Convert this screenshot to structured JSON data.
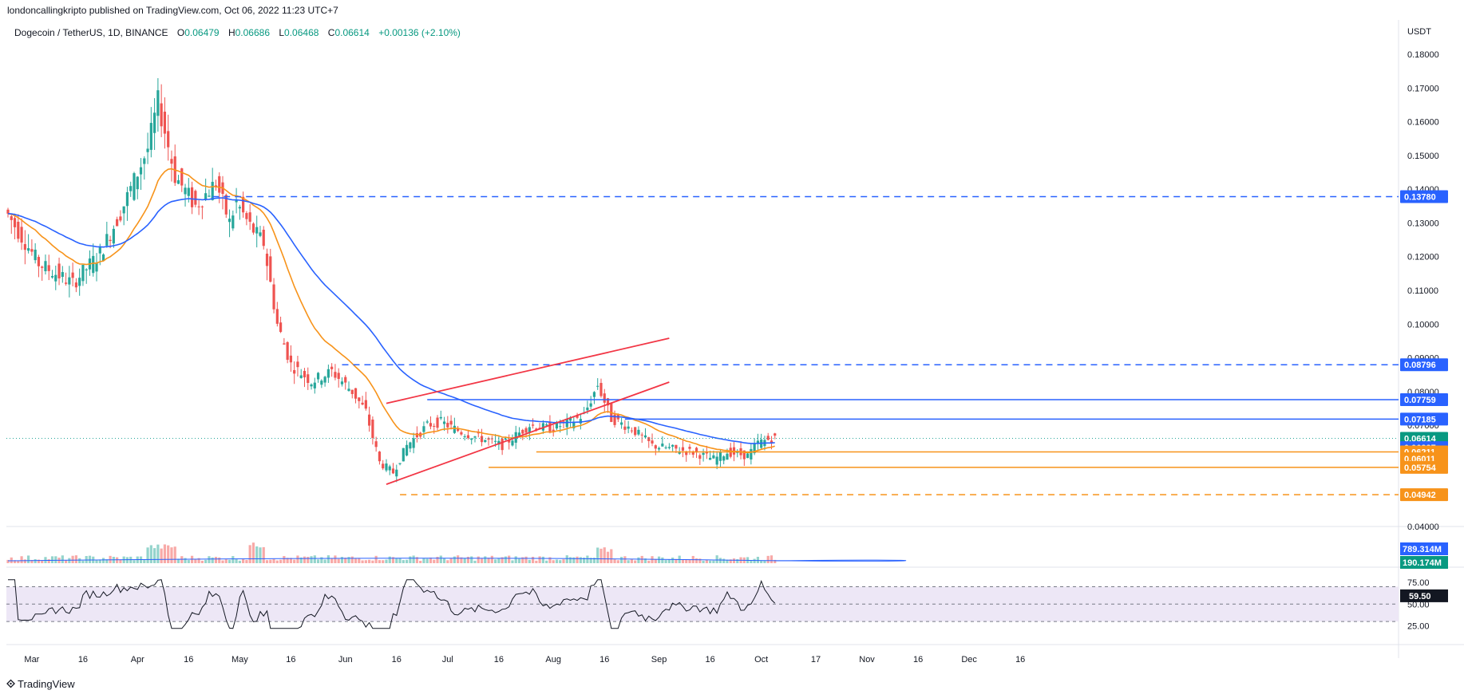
{
  "header": {
    "published": "londoncallingkripto published on TradingView.com, Oct 06, 2022 11:23 UTC+7"
  },
  "legend": {
    "symbol": "Dogecoin / TetherUS, 1D, BINANCE",
    "open_label": "O",
    "open": "0.06479",
    "high_label": "H",
    "high": "0.06686",
    "low_label": "L",
    "low": "0.06468",
    "close_label": "C",
    "close": "0.06614",
    "change": "+0.00136 (+2.10%)"
  },
  "currency": "USDT",
  "footer": {
    "brand": "TradingView",
    "logo_icon": "tradingview-logo-icon"
  },
  "colors": {
    "up": "#26a69a",
    "down": "#ef5350",
    "ema_fast": "#f7931a",
    "ema_slow": "#2962ff",
    "trendline": "#f23645",
    "resistance": "#2962ff",
    "support": "#f7931a",
    "rsi": "#131722",
    "rsi_band": "#ede7f6"
  },
  "chart_data": {
    "type": "candlestick",
    "symbol": "DOGEUSDT",
    "price_axis": {
      "ticks": [
        "0.18000",
        "0.17000",
        "0.16000",
        "0.15000",
        "0.14000",
        "0.13000",
        "0.12000",
        "0.11000",
        "0.10000",
        "0.09000",
        "0.08000",
        "0.07000",
        "0.06000",
        "0.05000",
        "0.04000"
      ],
      "ylim": [
        0.04,
        0.18
      ]
    },
    "time_axis": {
      "ticks": [
        "Mar",
        "16",
        "Apr",
        "16",
        "May",
        "16",
        "Jun",
        "16",
        "Jul",
        "16",
        "Aug",
        "16",
        "Sep",
        "16",
        "Oct",
        "17",
        "Nov",
        "16",
        "Dec",
        "16"
      ]
    },
    "price_labels": [
      {
        "value": "0.13780",
        "style": "blue"
      },
      {
        "value": "0.08796",
        "style": "blue"
      },
      {
        "value": "0.07759",
        "style": "blue"
      },
      {
        "value": "0.07185",
        "style": "blue"
      },
      {
        "value": "0.06614",
        "style": "green"
      },
      {
        "value": "0.06337",
        "style": "blue"
      },
      {
        "value": "0.06211",
        "style": "orange"
      },
      {
        "value": "0.06011",
        "style": "orange"
      },
      {
        "value": "0.05754",
        "style": "orange"
      },
      {
        "value": "0.04942",
        "style": "orange"
      }
    ],
    "horizontal_levels": [
      {
        "value": 0.1378,
        "color": "blue",
        "dashed": true,
        "from": "Apr-23"
      },
      {
        "value": 0.08796,
        "color": "blue",
        "dashed": true,
        "from": "May-31"
      },
      {
        "value": 0.07759,
        "color": "blue",
        "dashed": false,
        "from": "Jun-25"
      },
      {
        "value": 0.07185,
        "color": "blue",
        "dashed": false,
        "from": "Aug-22"
      },
      {
        "value": 0.06211,
        "color": "orange",
        "dashed": false,
        "from": "Jul-27"
      },
      {
        "value": 0.05754,
        "color": "orange",
        "dashed": false,
        "from": "Jul-13"
      },
      {
        "value": 0.04942,
        "color": "orange",
        "dashed": true,
        "from": "Jun-17"
      }
    ],
    "trendlines": [
      {
        "from": [
          "Jun-13",
          0.0525
        ],
        "to": [
          "Sep-04",
          0.0828
        ]
      },
      {
        "from": [
          "Jun-13",
          0.0765
        ],
        "to": [
          "Sep-04",
          0.0958
        ]
      }
    ],
    "volume": {
      "labels": [
        "789.314M",
        "190.174M"
      ]
    },
    "rsi": {
      "ticks": [
        "75.00",
        "50.00",
        "25.00"
      ],
      "value_label": "59.50",
      "band": [
        30,
        70
      ]
    }
  }
}
